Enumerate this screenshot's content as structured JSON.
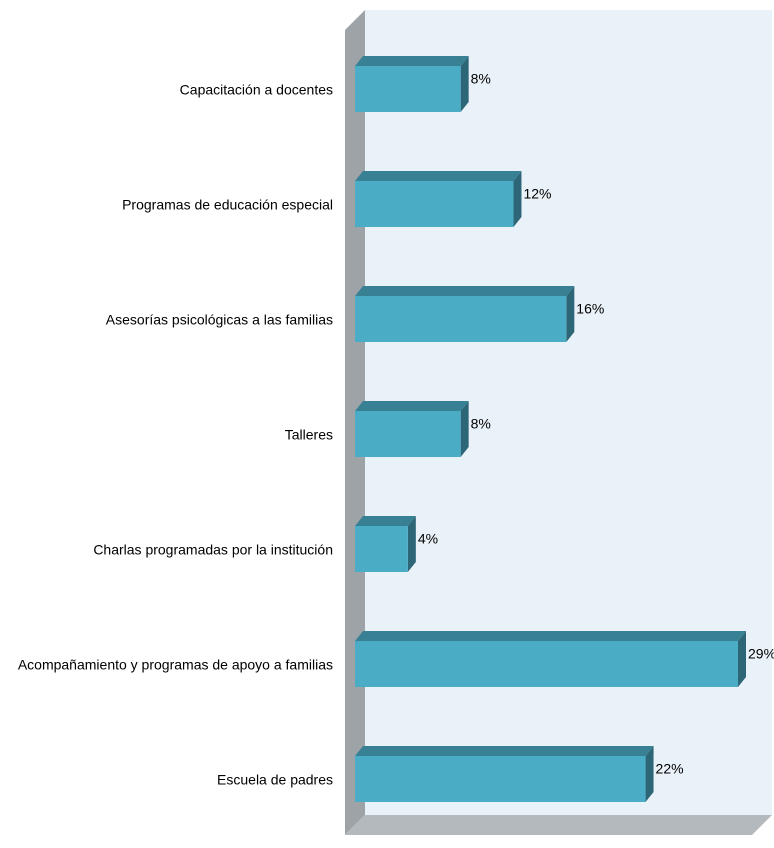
{
  "chart_data": {
    "type": "bar",
    "orientation": "horizontal",
    "categories": [
      "Capacitación a docentes",
      "Programas de educación especial",
      "Asesorías psicológicas a las familias",
      "Talleres",
      "Charlas programadas por la institución",
      "Acompañamiento  y programas de apoyo a familias",
      "Escuela de padres"
    ],
    "values": [
      8,
      12,
      16,
      8,
      4,
      29,
      22
    ],
    "value_labels": [
      "8%",
      "12%",
      "16%",
      "8%",
      "4%",
      "29%",
      "22%"
    ],
    "color": "#4bacc6"
  }
}
